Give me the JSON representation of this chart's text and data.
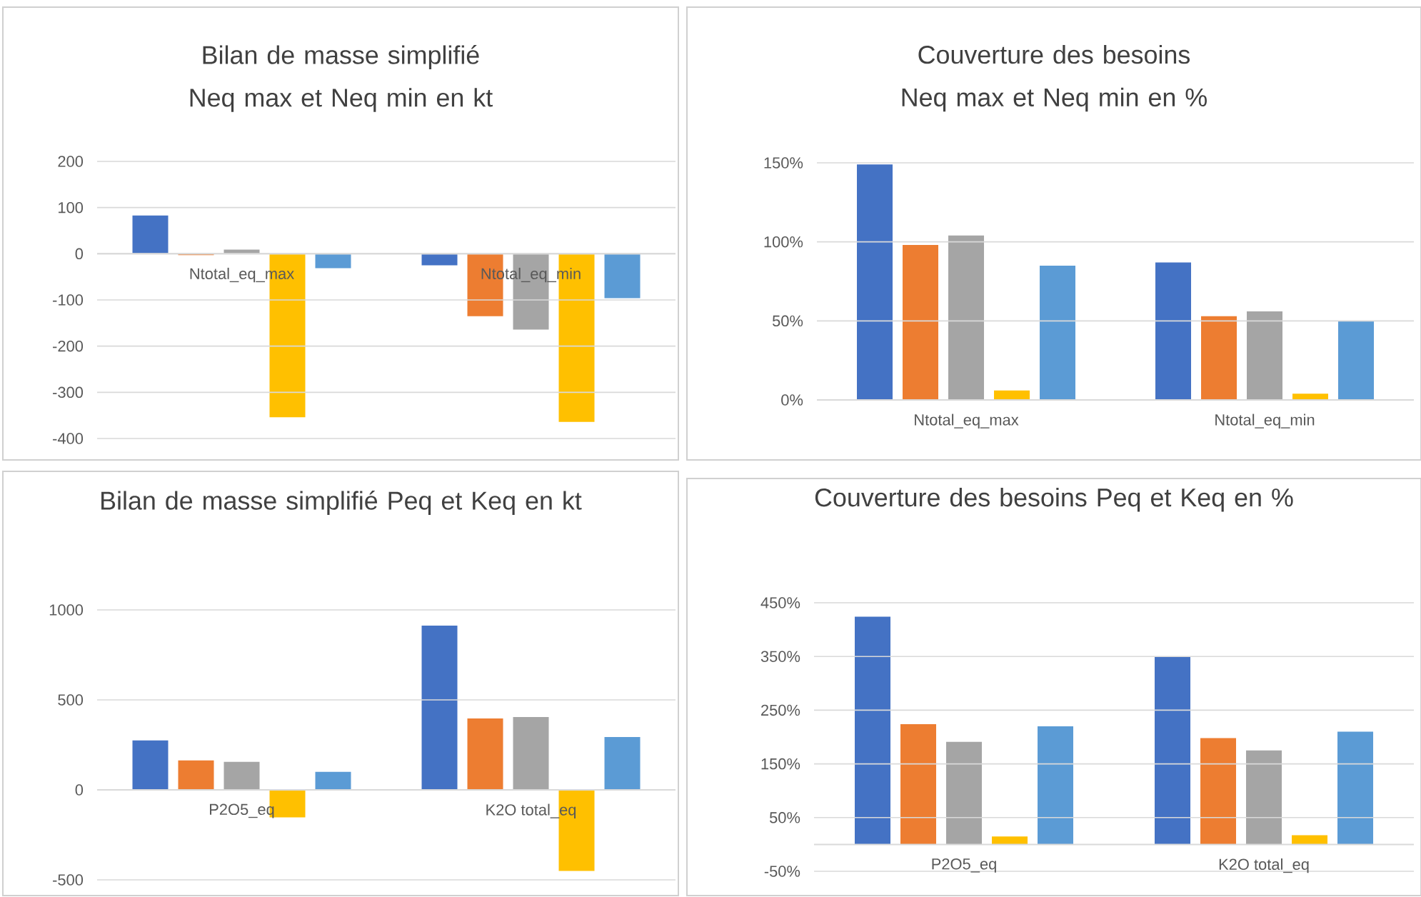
{
  "chart_data": [
    {
      "type": "bar",
      "title": "Bilan de masse simplifié Neq max et Neq min en kt",
      "categories": [
        "Ntotal_eq_max",
        "Ntotal_eq_min"
      ],
      "series": [
        {
          "color": "#4472c4",
          "values": [
            83,
            -25
          ]
        },
        {
          "color": "#ed7d31",
          "values": [
            -3,
            -135
          ]
        },
        {
          "color": "#a5a5a5",
          "values": [
            9,
            -164
          ]
        },
        {
          "color": "#ffc000",
          "values": [
            -354,
            -364
          ]
        },
        {
          "color": "#5b9bd5",
          "values": [
            -31,
            -96
          ]
        }
      ],
      "ylim": [
        -400,
        200
      ],
      "yticks": [
        -400,
        -300,
        -200,
        -100,
        0,
        100,
        200
      ],
      "grid": "y"
    },
    {
      "type": "bar",
      "title": "Couverture des besoins Neq max et Neq min en %",
      "categories": [
        "Ntotal_eq_max",
        "Ntotal_eq_min"
      ],
      "series": [
        {
          "color": "#4472c4",
          "values": [
            149,
            87
          ]
        },
        {
          "color": "#ed7d31",
          "values": [
            98,
            53
          ]
        },
        {
          "color": "#a5a5a5",
          "values": [
            104,
            56
          ]
        },
        {
          "color": "#ffc000",
          "values": [
            6,
            4
          ]
        },
        {
          "color": "#5b9bd5",
          "values": [
            85,
            50
          ]
        }
      ],
      "ylim": [
        0,
        150
      ],
      "yticks": [
        {
          "value": 0,
          "label": "0%"
        },
        {
          "value": 50,
          "label": "50%"
        },
        {
          "value": 100,
          "label": "100%"
        },
        {
          "value": 150,
          "label": "150%"
        }
      ],
      "grid": "y"
    },
    {
      "type": "bar",
      "title": "Bilan de masse simplifié Peq et Keq en kt",
      "categories": [
        "P2O5_eq",
        "K2O total_eq"
      ],
      "series": [
        {
          "color": "#4472c4",
          "values": [
            275,
            913
          ]
        },
        {
          "color": "#ed7d31",
          "values": [
            164,
            397
          ]
        },
        {
          "color": "#a5a5a5",
          "values": [
            156,
            405
          ]
        },
        {
          "color": "#ffc000",
          "values": [
            -153,
            -450
          ]
        },
        {
          "color": "#5b9bd5",
          "values": [
            100,
            294
          ]
        }
      ],
      "ylim": [
        -500,
        1000
      ],
      "yticks": [
        -500,
        0,
        500,
        1000
      ],
      "grid": "y"
    },
    {
      "type": "bar",
      "title": "Couverture des besoins Peq  et Keq en %",
      "categories": [
        "P2O5_eq",
        "K2O total_eq"
      ],
      "series": [
        {
          "color": "#4472c4",
          "values": [
            424,
            349
          ]
        },
        {
          "color": "#ed7d31",
          "values": [
            224,
            198
          ]
        },
        {
          "color": "#a5a5a5",
          "values": [
            191,
            175
          ]
        },
        {
          "color": "#ffc000",
          "values": [
            15,
            17
          ]
        },
        {
          "color": "#5b9bd5",
          "values": [
            220,
            210
          ]
        }
      ],
      "ylim": [
        -50,
        450
      ],
      "yticks": [
        {
          "value": -50,
          "label": "-50%"
        },
        {
          "value": 50,
          "label": "50%"
        },
        {
          "value": 150,
          "label": "150%"
        },
        {
          "value": 250,
          "label": "250%"
        },
        {
          "value": 350,
          "label": "350%"
        },
        {
          "value": 450,
          "label": "450%"
        }
      ],
      "grid": "y"
    }
  ]
}
